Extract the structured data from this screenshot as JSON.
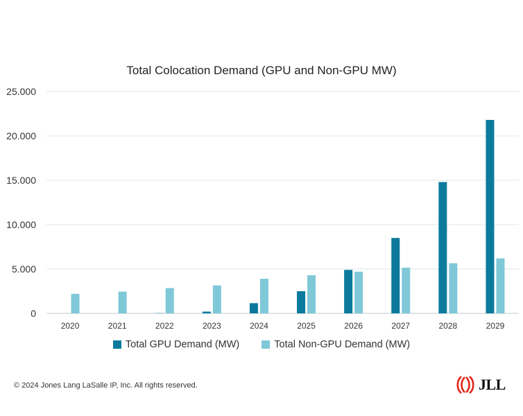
{
  "chart_data": {
    "type": "bar",
    "title": "Total Colocation Demand (GPU and Non-GPU MW)",
    "categories": [
      "2020",
      "2021",
      "2022",
      "2023",
      "2024",
      "2025",
      "2026",
      "2027",
      "2028",
      "2029"
    ],
    "series": [
      {
        "name": "Total GPU Demand (MW)",
        "color": "#0b7a9c",
        "values": [
          0,
          0,
          30,
          200,
          1150,
          2500,
          4900,
          8500,
          14800,
          21800
        ]
      },
      {
        "name": "Total Non-GPU Demand (MW)",
        "color": "#7fc8d8",
        "values": [
          2200,
          2450,
          2850,
          3150,
          3900,
          4300,
          4700,
          5150,
          5650,
          6200
        ]
      }
    ],
    "yticks": [
      "0",
      "5.000",
      "10.000",
      "15.000",
      "20.000",
      "25.000"
    ],
    "ylim": [
      0,
      25000
    ],
    "grid": true,
    "legend": "bottom"
  },
  "footer": {
    "copyright": "© 2024 Jones Lang LaSalle IP, Inc. All rights reserved.",
    "logo_text": "JLL",
    "logo_color": "#e2231a"
  }
}
